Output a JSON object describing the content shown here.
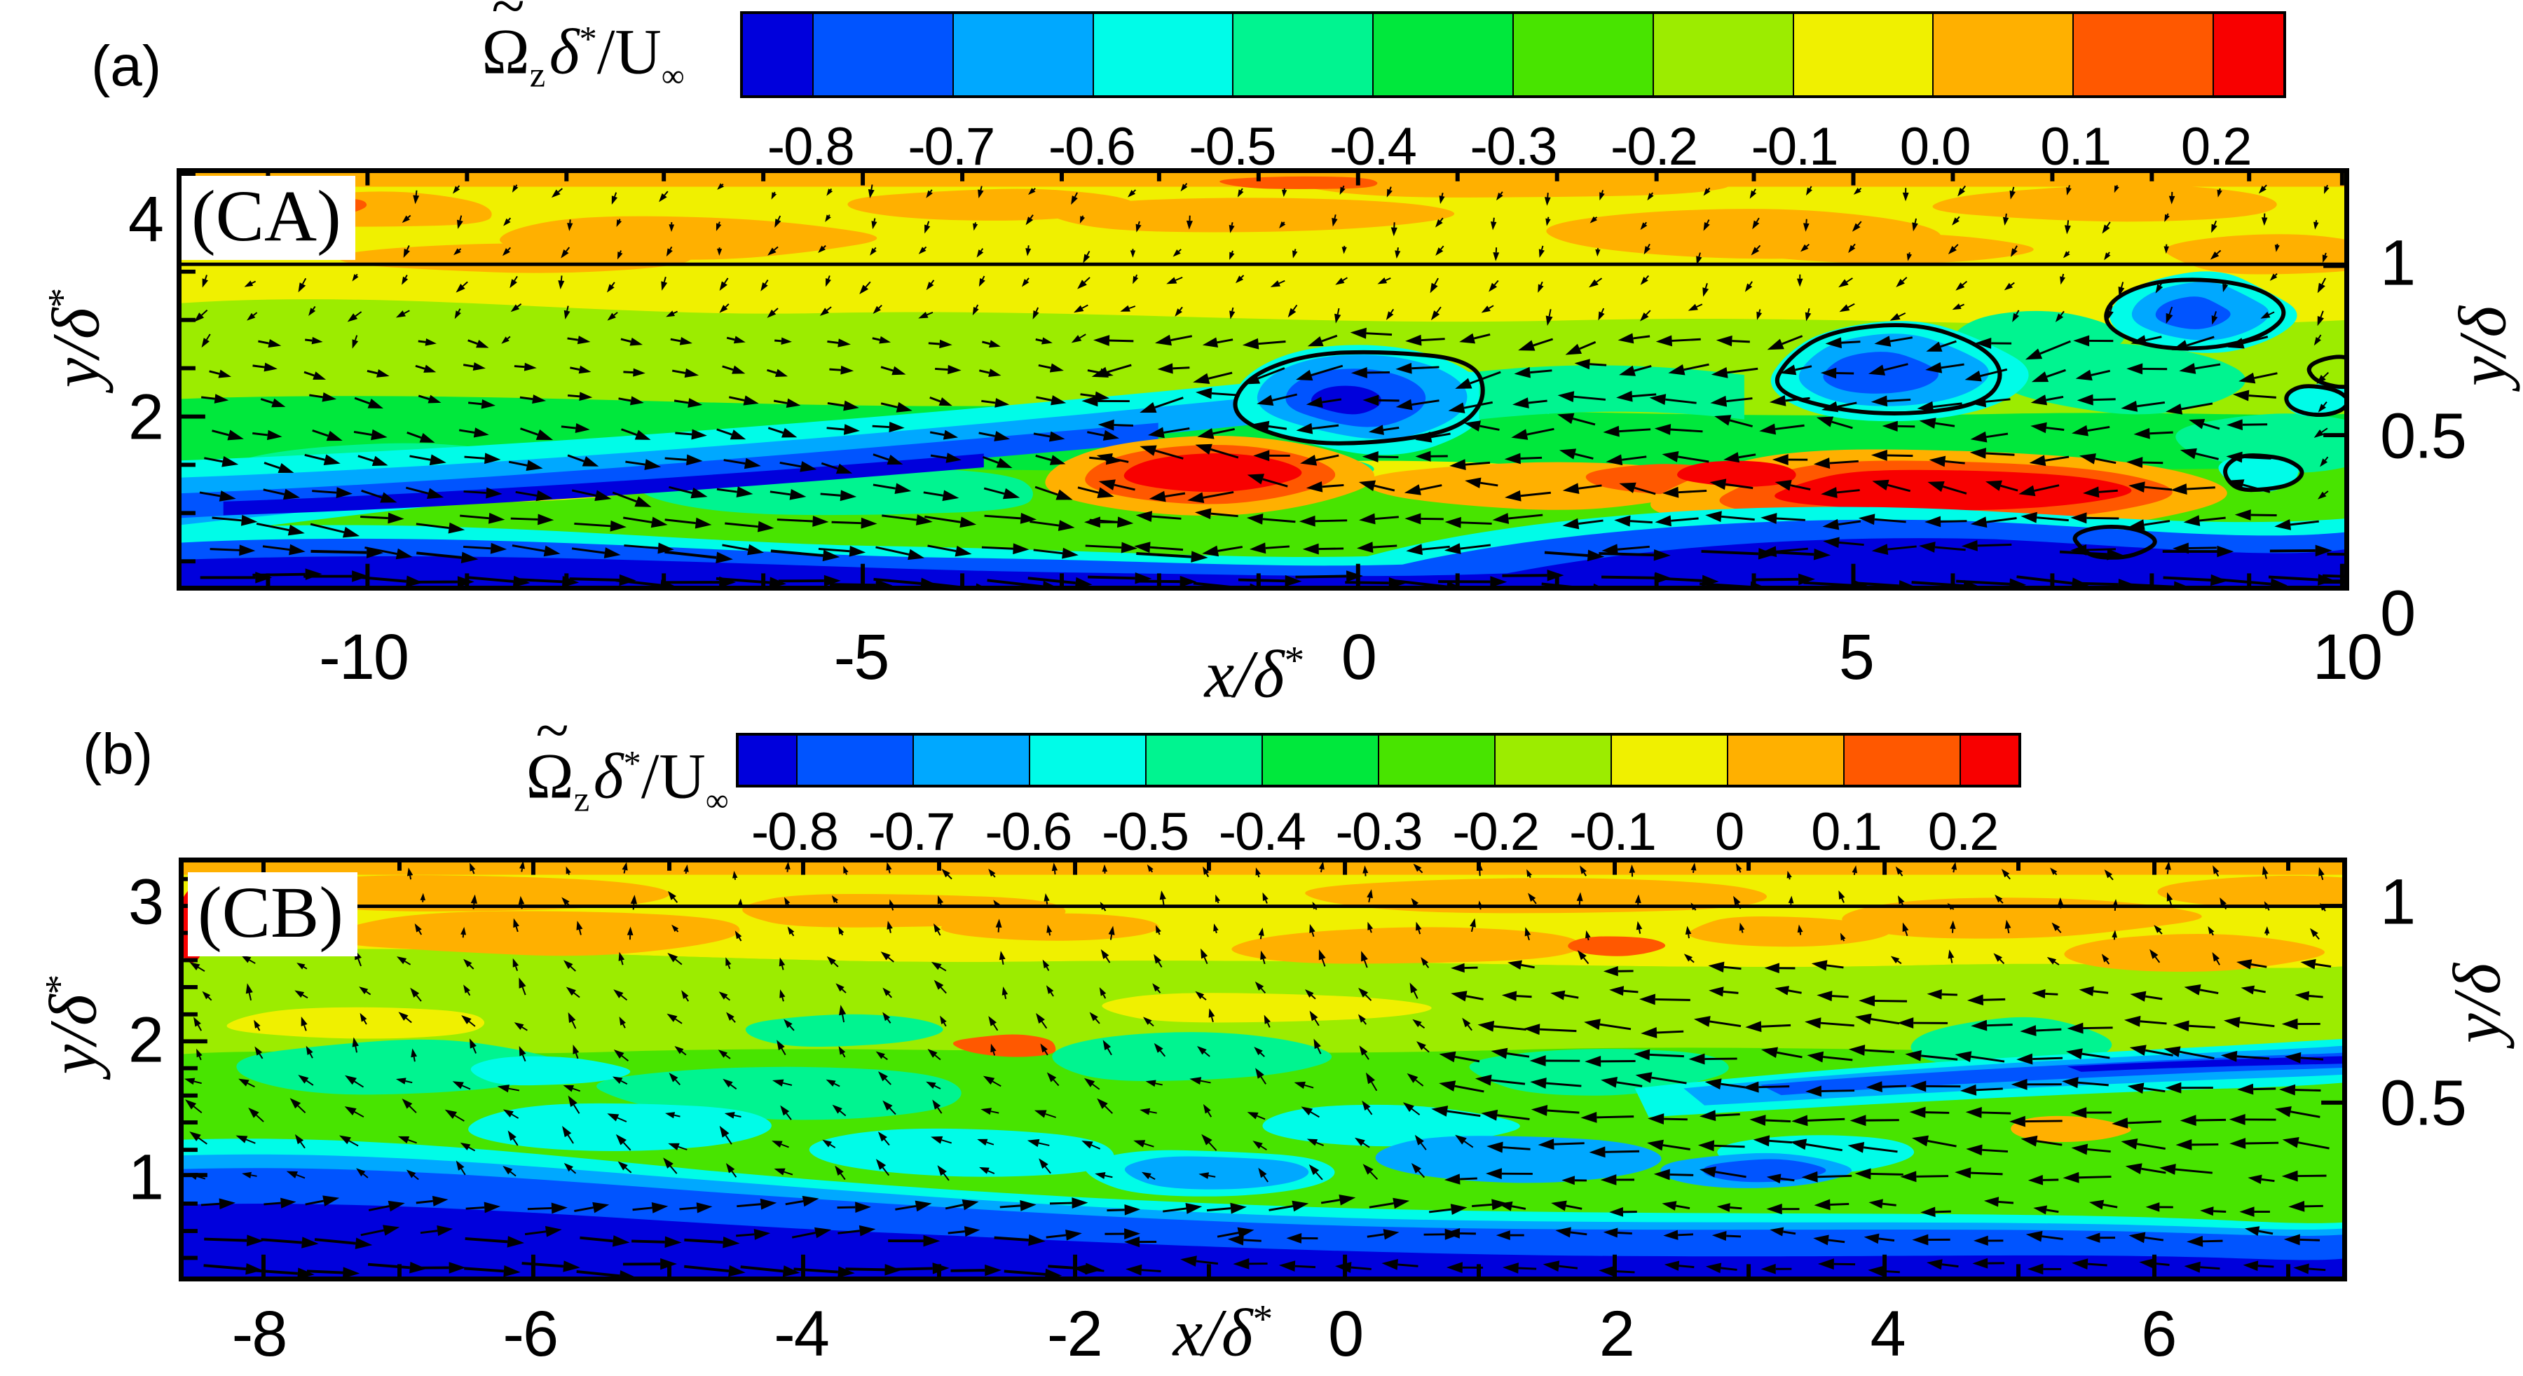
{
  "colorbar_title": {
    "tilde": "~",
    "omega": "Ω",
    "sub": "z",
    "delta": "δ",
    "star": "*",
    "slash_u": "/U",
    "inf": "∞"
  },
  "panel_a": {
    "label": "(a)",
    "tag": "(CA)",
    "colorbar_labels": [
      "-0.8",
      "-0.7",
      "-0.6",
      "-0.5",
      "-0.4",
      "-0.3",
      "-0.2",
      "-0.1",
      "0.0",
      "0.1",
      "0.2"
    ],
    "x_title": {
      "text": "x/δ",
      "sup": "*"
    },
    "y_left_title": {
      "text": "y/δ",
      "sup": "*"
    },
    "y_right_title": {
      "text": "y/δ",
      "sup": ""
    },
    "x_ticks": [
      {
        "label": "-10",
        "f": 0.086
      },
      {
        "label": "-5",
        "f": 0.315
      },
      {
        "label": "0",
        "f": 0.544
      },
      {
        "label": "5",
        "f": 0.773
      },
      {
        "label": "10",
        "f": 0.999
      }
    ],
    "y_left_ticks": [
      {
        "label": "4",
        "f": 0.122
      },
      {
        "label": "2",
        "f": 0.59
      }
    ],
    "y_right_ticks": [
      {
        "label": "1",
        "f": 0.225
      },
      {
        "label": "0.5",
        "f": 0.635
      },
      {
        "label": "0",
        "f": 1.055
      }
    ]
  },
  "panel_b": {
    "label": "(b)",
    "tag": "(CB)",
    "colorbar_labels": [
      "-0.8",
      "-0.7",
      "-0.6",
      "-0.5",
      "-0.4",
      "-0.3",
      "-0.2",
      "-0.1",
      "0",
      "0.1",
      "0.2"
    ],
    "x_title": {
      "text": "x/δ",
      "sup": "*"
    },
    "y_left_title": {
      "text": "y/δ",
      "sup": "*"
    },
    "y_right_title": {
      "text": "y/δ",
      "sup": ""
    },
    "x_ticks": [
      {
        "label": "-8",
        "f": 0.037
      },
      {
        "label": "-6",
        "f": 0.162
      },
      {
        "label": "-4",
        "f": 0.287
      },
      {
        "label": "-2",
        "f": 0.413
      },
      {
        "label": "0",
        "f": 0.538
      },
      {
        "label": "2",
        "f": 0.663
      },
      {
        "label": "4",
        "f": 0.788
      },
      {
        "label": "6",
        "f": 0.913
      }
    ],
    "y_left_ticks": [
      {
        "label": "3",
        "f": 0.105
      },
      {
        "label": "2",
        "f": 0.432
      },
      {
        "label": "1",
        "f": 0.755
      }
    ],
    "y_right_ticks": [
      {
        "label": "1",
        "f": 0.105
      },
      {
        "label": "0.5",
        "f": 0.58
      }
    ]
  },
  "chart_data": [
    {
      "type": "heatmap",
      "panel": "(a)",
      "case_tag": "(CA)",
      "quantity": "Ω̃zδ*/U∞ (normalized instantaneous spanwise vorticity)",
      "colormap_levels": [
        -0.8,
        -0.7,
        -0.6,
        -0.5,
        -0.4,
        -0.3,
        -0.2,
        -0.1,
        0.0,
        0.1,
        0.2
      ],
      "colormap_colors": [
        "#0000DC",
        "#0054FF",
        "#00A8FF",
        "#00FCE8",
        "#00F490",
        "#00E83C",
        "#48E400",
        "#9CEC00",
        "#F0F000",
        "#FFB000",
        "#FF5800",
        "#F80000"
      ],
      "xlabel": "x/δ*",
      "x_range": [
        -11.9,
        10.0
      ],
      "x_tick_values": [
        -10,
        -5,
        0,
        5,
        10
      ],
      "ylabel_left": "y/δ*",
      "y_left_range": [
        0.4,
        4.5
      ],
      "y_left_tick_values": [
        2,
        4
      ],
      "ylabel_right": "y/δ",
      "y_right_tick_values": [
        0,
        0.5,
        1
      ],
      "grid": false,
      "legend_position": "top colorbar",
      "overlays": [
        "in-plane velocity vector field",
        "horizontal line at y/δ = 1",
        "black contour loops around low-speed/vortex regions"
      ],
      "visible_features": [
        "dark blue negative-vorticity layer along the wall",
        "inclined blue shear layer rising from (-12,0.5) to (-3,2)",
        "vortex with black outline near x ≈ 0, y/δ* ≈ 2",
        "red positive-vorticity patches at x ≈ -2 and x ≈ 2.5–6 near y/δ* ≈ 1.3",
        "orange band above y/δ = 1"
      ]
    },
    {
      "type": "heatmap",
      "panel": "(b)",
      "case_tag": "(CB)",
      "quantity": "Ω̃zδ*/U∞ (normalized instantaneous spanwise vorticity)",
      "colormap_levels": [
        -0.8,
        -0.7,
        -0.6,
        -0.5,
        -0.4,
        -0.3,
        -0.2,
        -0.1,
        0,
        0.1,
        0.2
      ],
      "colormap_colors": [
        "#0000DC",
        "#0054FF",
        "#00A8FF",
        "#00FCE8",
        "#00F490",
        "#00E83C",
        "#48E400",
        "#9CEC00",
        "#F0F000",
        "#FFB000",
        "#FF5800",
        "#F80000"
      ],
      "xlabel": "x/δ*",
      "x_range": [
        -8.6,
        7.4
      ],
      "x_tick_values": [
        -8,
        -6,
        -4,
        -2,
        0,
        2,
        4,
        6
      ],
      "ylabel_left": "y/δ*",
      "y_left_range": [
        0.2,
        3.3
      ],
      "y_left_tick_values": [
        1,
        2,
        3
      ],
      "ylabel_right": "y/δ",
      "y_right_tick_values": [
        0.5,
        1
      ],
      "grid": false,
      "legend_position": "top colorbar",
      "overlays": [
        "in-plane velocity vector field",
        "horizontal line at y/δ = 1"
      ],
      "visible_features": [
        "dark blue layer along the wall, thicker on the left",
        "blue streak descending from upper right (x ≈ 2–7, y/δ* ≈ 1.7–2.1)",
        "dense leftward vectors in lower right half",
        "orange band above y/δ = 1 with orange patches below it",
        "green/cyan mottled mid region"
      ]
    }
  ]
}
